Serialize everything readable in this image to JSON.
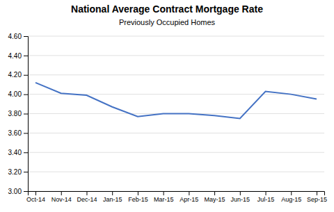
{
  "chart_data": {
    "type": "line",
    "title": "National Average Contract Mortgage Rate",
    "subtitle": "Previously Occupied Homes",
    "categories": [
      "Oct-14",
      "Nov-14",
      "Dec-14",
      "Jan-15",
      "Feb-15",
      "Mar-15",
      "Apr-15",
      "May-15",
      "Jun-15",
      "Jul-15",
      "Aug-15",
      "Sep-15"
    ],
    "values": [
      4.12,
      4.01,
      3.99,
      3.87,
      3.77,
      3.8,
      3.8,
      3.78,
      3.75,
      4.03,
      4.0,
      3.95
    ],
    "color": "#4472C4",
    "ylim": [
      3.0,
      4.6
    ],
    "yticks": [
      {
        "value": 3.0,
        "label": "3.00"
      },
      {
        "value": 3.2,
        "label": "3.20"
      },
      {
        "value": 3.4,
        "label": "3.40"
      },
      {
        "value": 3.6,
        "label": "3.60"
      },
      {
        "value": 3.8,
        "label": "3.80"
      },
      {
        "value": 4.0,
        "label": "4.00"
      },
      {
        "value": 4.2,
        "label": "4.20"
      },
      {
        "value": 4.4,
        "label": "4.40"
      },
      {
        "value": 4.6,
        "label": "4.60"
      }
    ],
    "grid": true
  }
}
